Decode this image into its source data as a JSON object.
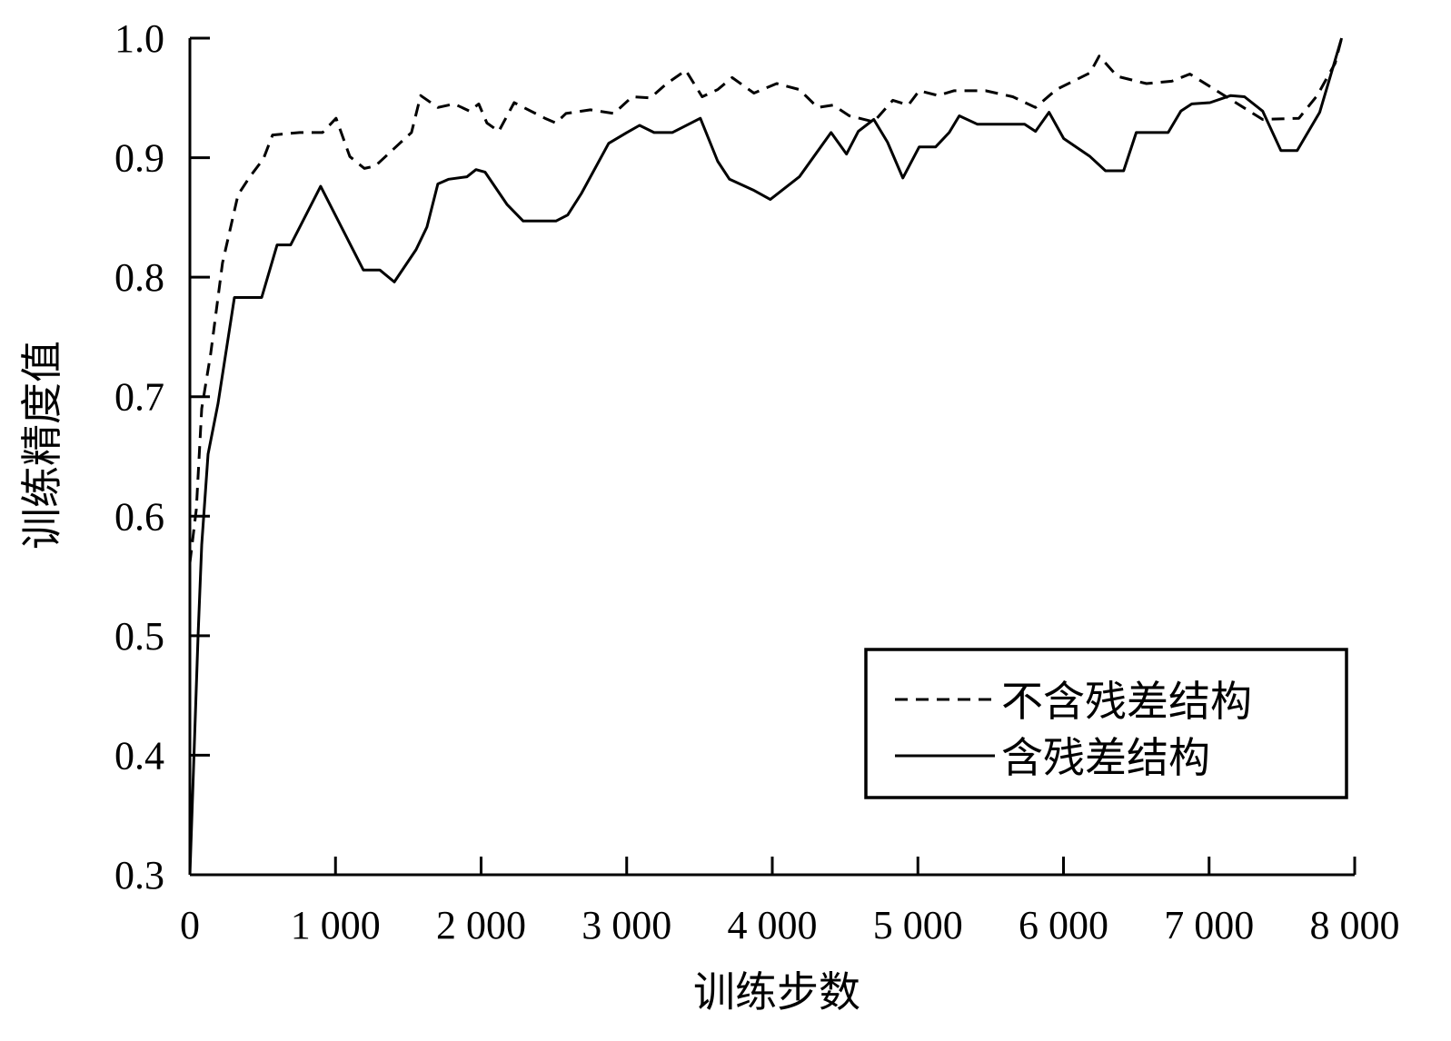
{
  "chart_data": {
    "type": "line",
    "title": "",
    "xlabel": "训练步数",
    "ylabel": "训练精度值",
    "xlim": [
      0,
      8000
    ],
    "ylim": [
      0.3,
      1.0
    ],
    "xticks": [
      0,
      1000,
      2000,
      3000,
      4000,
      5000,
      6000,
      7000,
      8000
    ],
    "xtick_labels": [
      "0",
      "1 000",
      "2 000",
      "3 000",
      "4 000",
      "5 000",
      "6 000",
      "7 000",
      "8 000"
    ],
    "yticks": [
      0.3,
      0.4,
      0.5,
      0.6,
      0.7,
      0.8,
      0.9,
      1.0
    ],
    "ytick_labels": [
      "0.3",
      "0.4",
      "0.5",
      "0.6",
      "0.7",
      "0.8",
      "0.9",
      "1.0"
    ],
    "grid": false,
    "legend_position": "bottom-right",
    "series": [
      {
        "name": "不含残差结构",
        "style": "dashed",
        "color": "#000000",
        "x": [
          0,
          44,
          81,
          143,
          224,
          331,
          412,
          505,
          568,
          755,
          911,
          1004,
          1098,
          1198,
          1273,
          1441,
          1522,
          1585,
          1703,
          1815,
          1921,
          1984,
          2040,
          2121,
          2227,
          2439,
          2514,
          2583,
          2751,
          2913,
          3038,
          3163,
          3275,
          3406,
          3518,
          3625,
          3724,
          3874,
          4030,
          4186,
          4311,
          4417,
          4529,
          4697,
          4828,
          4934,
          5009,
          5140,
          5247,
          5465,
          5652,
          5808,
          5951,
          6182,
          6245,
          6370,
          6570,
          6744,
          6868,
          7118,
          7368,
          7617,
          7742,
          7866,
          7910
        ],
        "y": [
          0.561,
          0.606,
          0.69,
          0.736,
          0.812,
          0.869,
          0.884,
          0.899,
          0.919,
          0.921,
          0.921,
          0.933,
          0.901,
          0.891,
          0.893,
          0.912,
          0.921,
          0.952,
          0.942,
          0.945,
          0.939,
          0.945,
          0.929,
          0.922,
          0.946,
          0.933,
          0.929,
          0.937,
          0.94,
          0.937,
          0.951,
          0.95,
          0.962,
          0.973,
          0.951,
          0.957,
          0.967,
          0.954,
          0.962,
          0.957,
          0.942,
          0.944,
          0.935,
          0.93,
          0.948,
          0.944,
          0.956,
          0.952,
          0.956,
          0.956,
          0.951,
          0.942,
          0.957,
          0.971,
          0.985,
          0.968,
          0.962,
          0.964,
          0.97,
          0.951,
          0.932,
          0.933,
          0.952,
          0.979,
          1.0
        ]
      },
      {
        "name": "含残差结构",
        "style": "solid",
        "color": "#000000",
        "x": [
          0,
          56,
          81,
          125,
          193,
          306,
          493,
          599,
          692,
          898,
          1191,
          1304,
          1404,
          1553,
          1628,
          1703,
          1778,
          1903,
          1965,
          2027,
          2177,
          2289,
          2514,
          2595,
          2689,
          2876,
          3001,
          3088,
          3188,
          3313,
          3506,
          3625,
          3706,
          3868,
          3986,
          4186,
          4404,
          4510,
          4591,
          4697,
          4791,
          4897,
          5009,
          5122,
          5215,
          5284,
          5408,
          5733,
          5808,
          5901,
          6001,
          6182,
          6288,
          6413,
          6500,
          6719,
          6806,
          6881,
          7006,
          7149,
          7243,
          7368,
          7493,
          7605,
          7760,
          7910
        ],
        "y": [
          0.3,
          0.5,
          0.576,
          0.652,
          0.694,
          0.783,
          0.783,
          0.827,
          0.827,
          0.876,
          0.806,
          0.806,
          0.796,
          0.823,
          0.842,
          0.878,
          0.882,
          0.884,
          0.89,
          0.888,
          0.861,
          0.847,
          0.847,
          0.852,
          0.87,
          0.912,
          0.921,
          0.927,
          0.921,
          0.921,
          0.933,
          0.897,
          0.882,
          0.873,
          0.865,
          0.884,
          0.921,
          0.903,
          0.922,
          0.932,
          0.913,
          0.883,
          0.909,
          0.909,
          0.921,
          0.935,
          0.928,
          0.928,
          0.922,
          0.938,
          0.916,
          0.901,
          0.889,
          0.889,
          0.921,
          0.921,
          0.939,
          0.945,
          0.946,
          0.952,
          0.951,
          0.939,
          0.906,
          0.906,
          0.938,
          1.0
        ]
      }
    ]
  }
}
